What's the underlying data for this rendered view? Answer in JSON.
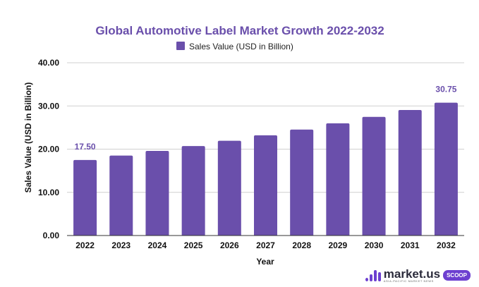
{
  "chart_data": {
    "type": "bar",
    "title": "Global Automotive Label Market Growth 2022-2032",
    "legend": {
      "entries": [
        "Sales Value (USD in Billion)"
      ],
      "placement": "top-center"
    },
    "xlabel": "Year",
    "ylabel": "Sales Value (USD in Billion)",
    "categories": [
      "2022",
      "2023",
      "2024",
      "2025",
      "2026",
      "2027",
      "2028",
      "2029",
      "2030",
      "2031",
      "2032"
    ],
    "series": [
      {
        "name": "Sales Value (USD in Billion)",
        "color": "#6a4fab",
        "values": [
          17.5,
          18.52,
          19.59,
          20.72,
          21.93,
          23.2,
          24.54,
          25.97,
          27.47,
          29.07,
          30.75
        ]
      }
    ],
    "data_labels": [
      {
        "category": "2022",
        "text": "17.50"
      },
      {
        "category": "2032",
        "text": "30.75"
      }
    ],
    "ylim": [
      0,
      40
    ],
    "yticks": [
      "0.00",
      "10.00",
      "20.00",
      "30.00",
      "40.00"
    ],
    "ytick_values": [
      0,
      10,
      20,
      30,
      40
    ],
    "grid": true
  },
  "branding": {
    "name": "market.us",
    "tagline": "ASIA-PACIFIC MARKET NEWS",
    "badge": "SCOOP"
  }
}
